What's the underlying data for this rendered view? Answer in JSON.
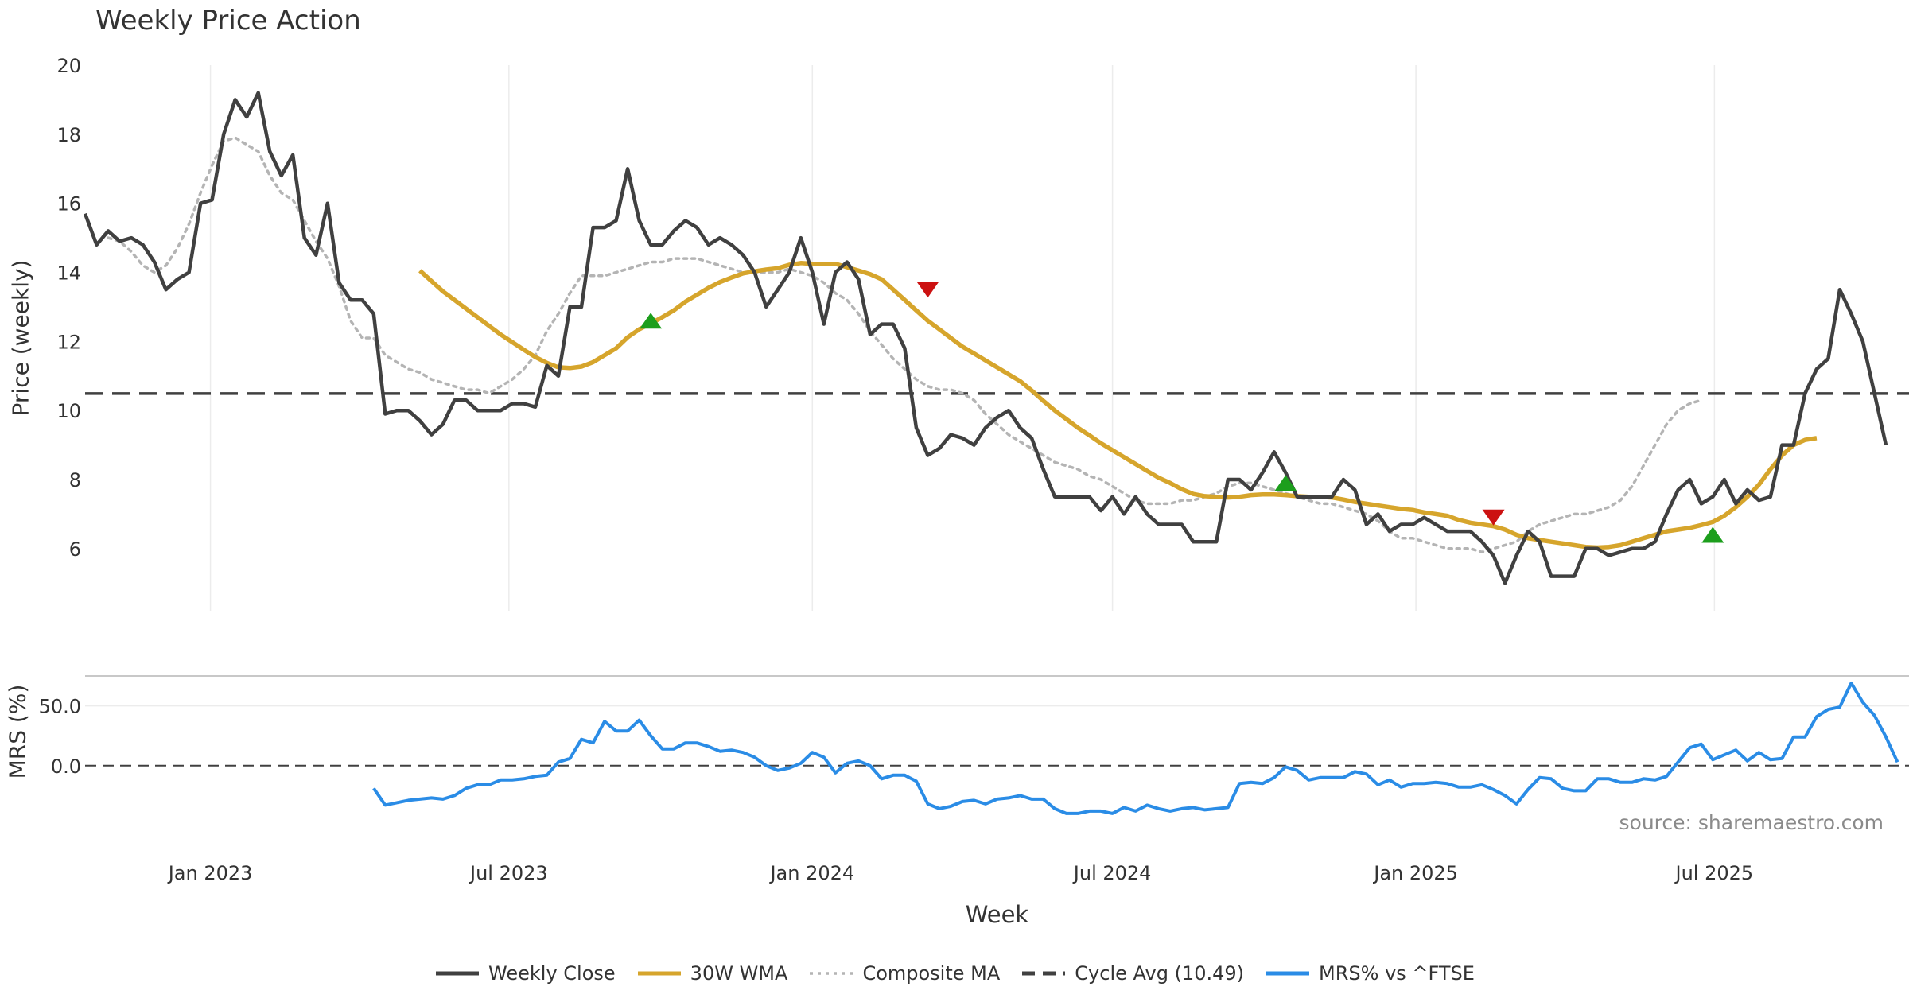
{
  "chart_data": {
    "type": "line",
    "title": "Weekly Price Action",
    "xlabel": "Week",
    "source_note": "source: sharemaestro.com",
    "x_ticks": [
      "Jan 2023",
      "Jul 2023",
      "Jan 2024",
      "Jul 2024",
      "Jan 2025",
      "Jul 2025"
    ],
    "x_range": [
      "2022-10",
      "2025-10"
    ],
    "price_panel": {
      "ylabel": "Price (weekly)",
      "y_ticks": [
        "6",
        "8",
        "10",
        "12",
        "14",
        "16",
        "18",
        "20"
      ],
      "ylim": [
        4.2,
        20
      ],
      "cycle_avg": 10.49,
      "series": [
        {
          "name": "Weekly Close",
          "color": "#404040",
          "values": [
            15.7,
            14.8,
            15.2,
            14.9,
            15.0,
            14.8,
            14.3,
            13.5,
            13.8,
            14.0,
            16.0,
            16.1,
            18.0,
            19.0,
            18.5,
            19.2,
            17.5,
            16.8,
            17.4,
            15.0,
            14.5,
            16.0,
            13.7,
            13.2,
            13.2,
            12.8,
            9.9,
            10.0,
            10.0,
            9.7,
            9.3,
            9.6,
            10.3,
            10.3,
            10.0,
            10.0,
            10.0,
            10.2,
            10.2,
            10.1,
            11.3,
            11.0,
            13.0,
            13.0,
            15.3,
            15.3,
            15.5,
            17.0,
            15.5,
            14.8,
            14.8,
            15.2,
            15.5,
            15.3,
            14.8,
            15.0,
            14.8,
            14.5,
            14.0,
            13.0,
            13.5,
            14.0,
            15.0,
            14.0,
            12.5,
            14.0,
            14.3,
            13.8,
            12.2,
            12.5,
            12.5,
            11.8,
            9.5,
            8.7,
            8.9,
            9.3,
            9.2,
            9.0,
            9.5,
            9.8,
            10.0,
            9.5,
            9.2,
            8.3,
            7.5,
            7.5,
            7.5,
            7.5,
            7.1,
            7.5,
            7.0,
            7.5,
            7.0,
            6.7,
            6.7,
            6.7,
            6.2,
            6.2,
            6.2,
            8.0,
            8.0,
            7.7,
            8.2,
            8.8,
            8.2,
            7.5,
            7.5,
            7.5,
            7.5,
            8.0,
            7.7,
            6.7,
            7.0,
            6.5,
            6.7,
            6.7,
            6.9,
            6.7,
            6.5,
            6.5,
            6.5,
            6.2,
            5.8,
            5.0,
            5.8,
            6.5,
            6.2,
            5.2,
            5.2,
            5.2,
            6.0,
            6.0,
            5.8,
            5.9,
            6.0,
            6.0,
            6.2,
            7.0,
            7.7,
            8.0,
            7.3,
            7.5,
            8.0,
            7.3,
            7.7,
            7.4,
            7.5,
            9.0,
            9.0,
            10.5,
            11.2,
            11.5,
            13.5,
            12.8,
            12.0,
            10.5,
            9.0
          ]
        },
        {
          "name": "30W WMA",
          "color": "#d6a52c",
          "values": [
            14.05,
            13.75,
            13.45,
            13.2,
            12.95,
            12.7,
            12.45,
            12.2,
            11.98,
            11.76,
            11.55,
            11.38,
            11.25,
            11.23,
            11.27,
            11.4,
            11.6,
            11.8,
            12.12,
            12.35,
            12.52,
            12.7,
            12.9,
            13.15,
            13.35,
            13.55,
            13.72,
            13.85,
            13.97,
            14.03,
            14.08,
            14.12,
            14.22,
            14.27,
            14.25,
            14.25,
            14.25,
            14.15,
            14.05,
            13.95,
            13.8,
            13.5,
            13.2,
            12.9,
            12.6,
            12.35,
            12.1,
            11.85,
            11.65,
            11.45,
            11.25,
            11.05,
            10.85,
            10.58,
            10.28,
            10.0,
            9.75,
            9.5,
            9.28,
            9.05,
            8.85,
            8.65,
            8.45,
            8.25,
            8.05,
            7.9,
            7.72,
            7.58,
            7.52,
            7.5,
            7.48,
            7.5,
            7.55,
            7.57,
            7.57,
            7.55,
            7.52,
            7.5,
            7.5,
            7.48,
            7.42,
            7.35,
            7.3,
            7.25,
            7.2,
            7.15,
            7.12,
            7.05,
            7.0,
            6.95,
            6.83,
            6.75,
            6.7,
            6.65,
            6.55,
            6.4,
            6.3,
            6.25,
            6.2,
            6.15,
            6.1,
            6.05,
            6.03,
            6.05,
            6.1,
            6.2,
            6.3,
            6.4,
            6.5,
            6.55,
            6.6,
            6.68,
            6.77,
            6.95,
            7.2,
            7.5,
            7.85,
            8.3,
            8.7,
            9.0,
            9.15,
            9.2
          ]
        },
        {
          "name": "Composite MA",
          "color": "#b4b4b4",
          "values": [
            15.0,
            14.9,
            14.6,
            14.2,
            14.0,
            14.2,
            14.7,
            15.4,
            16.3,
            17.1,
            17.8,
            17.9,
            17.7,
            17.5,
            16.8,
            16.3,
            16.1,
            15.5,
            14.9,
            14.4,
            13.6,
            12.6,
            12.1,
            12.1,
            11.6,
            11.4,
            11.2,
            11.1,
            10.9,
            10.8,
            10.7,
            10.6,
            10.6,
            10.5,
            10.7,
            10.9,
            11.2,
            11.6,
            12.3,
            12.8,
            13.4,
            13.9,
            13.9,
            13.9,
            14.0,
            14.1,
            14.2,
            14.3,
            14.3,
            14.4,
            14.4,
            14.4,
            14.3,
            14.2,
            14.1,
            14.0,
            14.0,
            14.0,
            14.0,
            14.1,
            14.0,
            13.9,
            13.7,
            13.4,
            13.2,
            12.8,
            12.3,
            11.9,
            11.5,
            11.2,
            10.9,
            10.7,
            10.6,
            10.6,
            10.5,
            10.3,
            9.9,
            9.6,
            9.3,
            9.1,
            8.9,
            8.7,
            8.5,
            8.4,
            8.3,
            8.1,
            8.0,
            7.8,
            7.6,
            7.4,
            7.3,
            7.3,
            7.3,
            7.4,
            7.4,
            7.5,
            7.6,
            7.8,
            7.9,
            7.9,
            7.8,
            7.7,
            7.6,
            7.5,
            7.4,
            7.3,
            7.3,
            7.2,
            7.1,
            7.0,
            6.8,
            6.5,
            6.3,
            6.3,
            6.2,
            6.1,
            6.0,
            6.0,
            6.0,
            5.9,
            6.0,
            6.1,
            6.2,
            6.5,
            6.7,
            6.8,
            6.9,
            7.0,
            7.0,
            7.1,
            7.2,
            7.4,
            7.8,
            8.4,
            9.0,
            9.6,
            10.0,
            10.2,
            10.3
          ]
        }
      ],
      "signals": [
        {
          "type": "buy",
          "date": "2023-09-25",
          "value": 12.6
        },
        {
          "type": "sell",
          "date": "2024-03-11",
          "value": 13.5
        },
        {
          "type": "buy",
          "date": "2024-10-14",
          "value": 7.9
        },
        {
          "type": "sell",
          "date": "2025-02-17",
          "value": 6.9
        },
        {
          "type": "buy",
          "date": "2025-06-30",
          "value": 6.4
        }
      ]
    },
    "mrs_panel": {
      "ylabel": "MRS (%)",
      "y_ticks": [
        "0.0",
        "50.0"
      ],
      "ylim": [
        -62,
        75
      ],
      "series": [
        {
          "name": "MRS% vs ^FTSE",
          "color": "#2a8ce6",
          "values": [
            -19,
            -33,
            -31,
            -29,
            -28,
            -27,
            -28,
            -25,
            -19,
            -16,
            -16,
            -12,
            -12,
            -11,
            -9,
            -8,
            3,
            6,
            22,
            19,
            37,
            29,
            29,
            38,
            25,
            14,
            14,
            19,
            19,
            16,
            12,
            13,
            11,
            7,
            0,
            -4,
            -2,
            2,
            11,
            7,
            -6,
            2,
            4,
            0,
            -11,
            -8,
            -8,
            -13,
            -32,
            -36,
            -34,
            -30,
            -29,
            -32,
            -28,
            -27,
            -25,
            -28,
            -28,
            -36,
            -40,
            -40,
            -38,
            -38,
            -40,
            -35,
            -38,
            -33,
            -36,
            -38,
            -36,
            -35,
            -37,
            -36,
            -35,
            -15,
            -14,
            -15,
            -10,
            -1,
            -4,
            -12,
            -10,
            -10,
            -10,
            -5,
            -7,
            -16,
            -12,
            -18,
            -15,
            -15,
            -14,
            -15,
            -18,
            -18,
            -16,
            -20,
            -25,
            -32,
            -20,
            -10,
            -11,
            -19,
            -21,
            -21,
            -11,
            -11,
            -14,
            -14,
            -11,
            -12,
            -9,
            3,
            15,
            18,
            5,
            9,
            13,
            4,
            11,
            5,
            6,
            24,
            24,
            41,
            47,
            49,
            69,
            53,
            42,
            24,
            3
          ]
        }
      ]
    },
    "legend": [
      {
        "label": "Weekly Close",
        "style": "solid",
        "color": "#404040"
      },
      {
        "label": "30W WMA",
        "style": "solid",
        "color": "#d6a52c"
      },
      {
        "label": "Composite MA",
        "style": "dotted",
        "color": "#b4b4b4"
      },
      {
        "label": "Cycle Avg (10.49)",
        "style": "dashed",
        "color": "#404040"
      },
      {
        "label": "MRS% vs ^FTSE",
        "style": "solid",
        "color": "#2a8ce6"
      }
    ],
    "colors": {
      "buy_signal": "#1c9e1c",
      "sell_signal": "#cc1111",
      "grid": "#ececec"
    }
  }
}
